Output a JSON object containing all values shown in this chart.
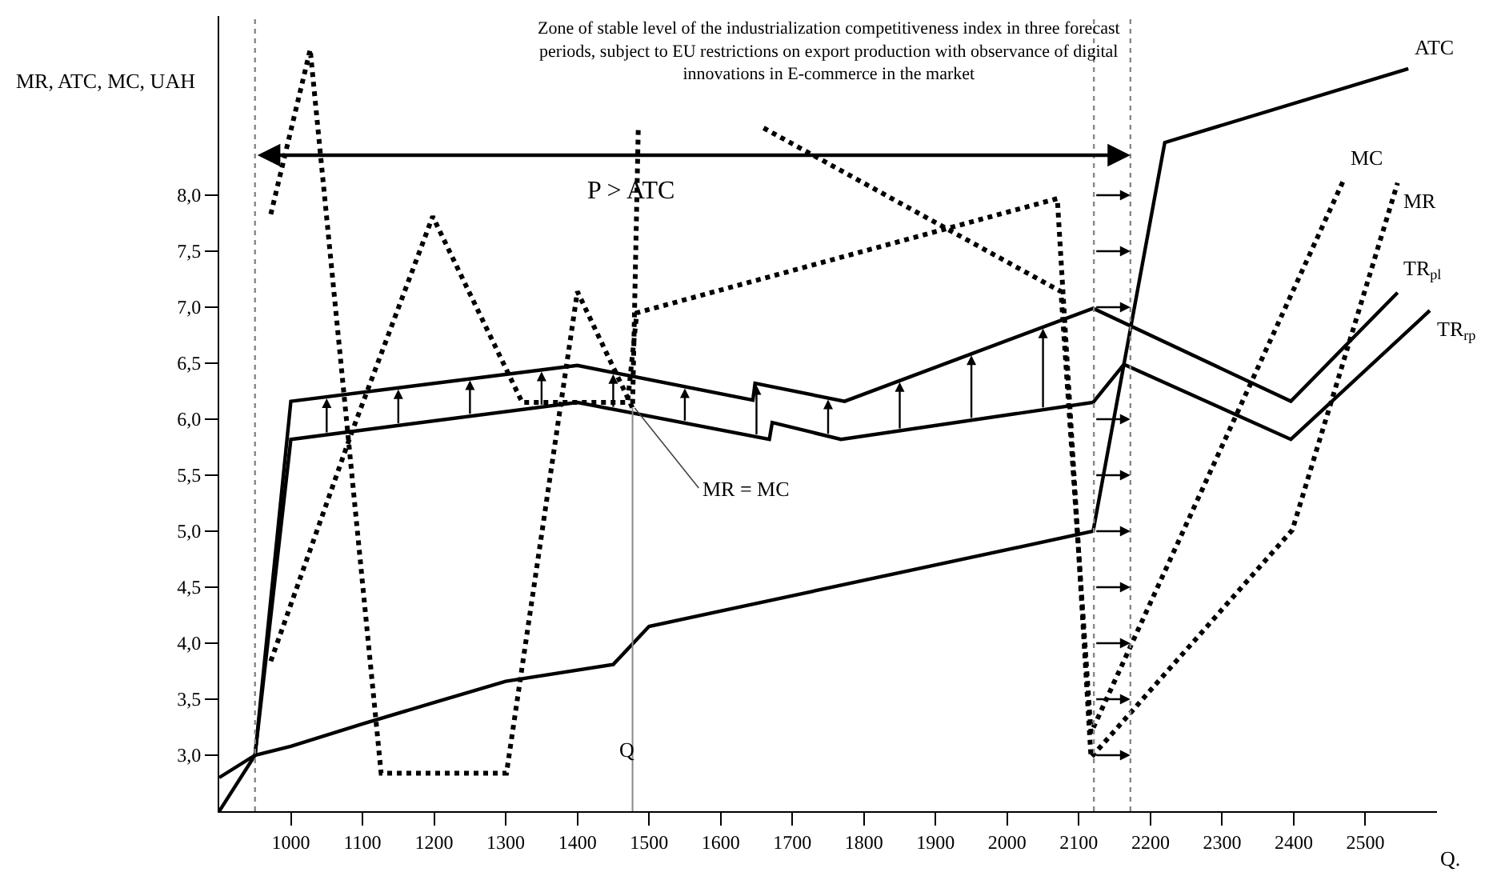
{
  "chart_data": {
    "type": "line",
    "annotations": [
      "Zone of stable level of the industrialization competitiveness index in three forecast periods, subject to EU restrictions on export production with observance of digital innovations in E-commerce in the market",
      {
        "text": "MR = MC",
        "x": 1480,
        "y": 6.1
      },
      {
        "text": "Q",
        "x": 1470,
        "y": 3.05
      },
      "P > ATC"
    ],
    "xlabel": "Q.",
    "ylabel": "MR, ATC, MC, UAH",
    "xlim": [
      900,
      2600
    ],
    "ylim": [
      2.5,
      9.6
    ],
    "xticks": [
      1000,
      1100,
      1200,
      1300,
      1400,
      1500,
      1600,
      1700,
      1800,
      1900,
      2000,
      2100,
      2200,
      2300,
      2400,
      2500
    ],
    "yticks": [
      {
        "value": 3,
        "label": "3,0"
      },
      {
        "value": 3.5,
        "label": "3,5"
      },
      {
        "value": 4,
        "label": "4,0"
      },
      {
        "value": 4.5,
        "label": "4,5"
      },
      {
        "value": 5,
        "label": "5,0"
      },
      {
        "value": 5.5,
        "label": "5,5"
      },
      {
        "value": 6,
        "label": "6,0"
      },
      {
        "value": 6.5,
        "label": "6,5"
      },
      {
        "value": 7,
        "label": "7,0"
      },
      {
        "value": 7.5,
        "label": "7,5"
      },
      {
        "value": 8,
        "label": "8,0"
      }
    ],
    "grid": false,
    "legend": false,
    "marker": "none",
    "series": [
      {
        "name": "ATC",
        "color": "#000000",
        "line_style": "solid",
        "x": [
          900,
          950,
          1000,
          1100,
          1200,
          1300,
          1450,
          1500,
          2120,
          2220,
          2560
        ],
        "values": [
          2.8,
          3.0,
          3.08,
          3.28,
          3.47,
          3.66,
          3.81,
          4.15,
          5.0,
          8.47,
          9.13
        ]
      },
      {
        "name": "TR$_{pl}$",
        "color": "#000000",
        "line_style": "solid",
        "x": [
          900,
          950,
          1000,
          1400,
          1645,
          1648,
          1773,
          2120,
          2396,
          2545
        ],
        "values": [
          2.5,
          3.0,
          6.16,
          6.48,
          6.17,
          6.32,
          6.16,
          6.99,
          6.16,
          7.13
        ]
      },
      {
        "name": "TR$_{rp}$",
        "color": "#000000",
        "line_style": "solid",
        "x": [
          950,
          1000,
          1400,
          1668,
          1672,
          1768,
          2120,
          2163,
          2396,
          2590
        ],
        "values": [
          3.0,
          5.82,
          6.15,
          5.82,
          5.97,
          5.82,
          6.15,
          6.49,
          5.82,
          6.97
        ]
      },
      {
        "name": "MC",
        "color": "#000000",
        "line_style": "dotted",
        "x": [
          972,
          1027,
          1126,
          1301,
          1400,
          1477,
          1485,
          1570,
          1660,
          2075,
          2117,
          2470
        ],
        "values": [
          7.83,
          9.3,
          2.84,
          2.84,
          7.14,
          6.1,
          8.6,
          null,
          8.6,
          7.14,
          3.2,
          8.14
        ]
      },
      {
        "name": "MR",
        "color": "#000000",
        "line_style": "dotted",
        "x": [
          972,
          1086,
          1198,
          1323,
          1470,
          1483,
          2070,
          2117,
          2398,
          2545
        ],
        "values": [
          3.84,
          5.9,
          7.81,
          6.15,
          6.15,
          6.95,
          7.97,
          2.98,
          5.01,
          8.11
        ]
      },
      {
        "color": "#888888",
        "line_style": "solid",
        "x": [
          1477,
          1477
        ],
        "values": [
          2.5,
          6.1
        ]
      }
    ],
    "ref_lines": [
      {
        "axis": "x",
        "value": 950,
        "line_style": "dotted",
        "color": "#888888"
      },
      {
        "axis": "x",
        "value": 2121,
        "line_style": "dotted",
        "color": "#888888"
      },
      {
        "axis": "x",
        "value": 2172,
        "line_style": "dotted",
        "color": "#888888"
      }
    ]
  }
}
